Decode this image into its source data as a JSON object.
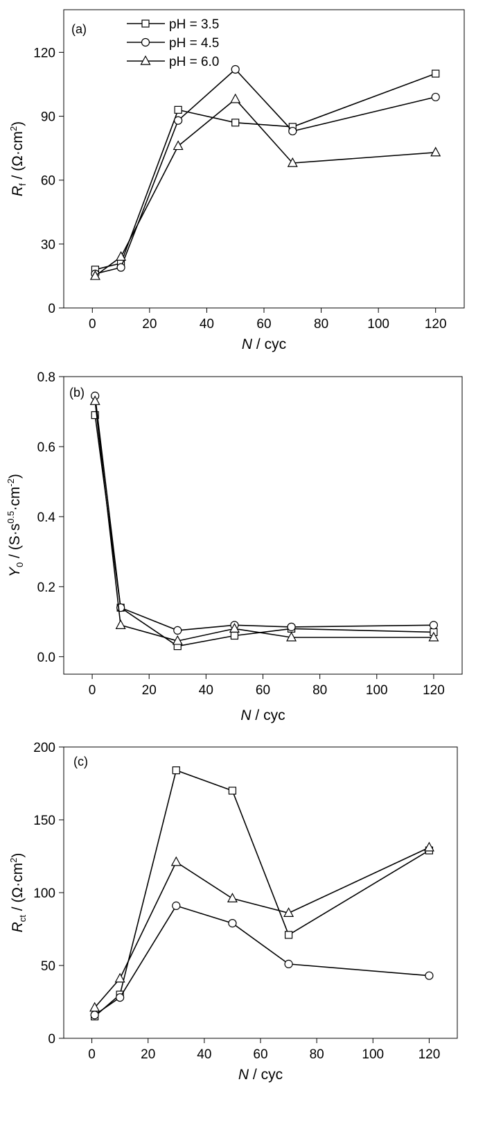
{
  "chart_data": [
    {
      "type": "line",
      "panel_label": "(a)",
      "xlabel": {
        "symbol": "N",
        "unit": " / cyc"
      },
      "ylabel": {
        "symbol": "R",
        "subscript": "f",
        "unit_prefix": " / (Ω·cm",
        "superscript": "2",
        "unit_suffix": ")"
      },
      "xlim": [
        -10,
        130
      ],
      "ylim": [
        0,
        140
      ],
      "xticks": [
        0,
        20,
        40,
        60,
        80,
        100,
        120
      ],
      "yticks": [
        0,
        30,
        60,
        90,
        120
      ],
      "legend": {
        "placement": "top-left"
      },
      "series": [
        {
          "name": "pH = 3.5",
          "marker": "square",
          "x": [
            1,
            10,
            30,
            50,
            70,
            120
          ],
          "y": [
            18,
            21,
            93,
            87,
            85,
            110
          ]
        },
        {
          "name": "pH = 4.5",
          "marker": "circle",
          "x": [
            1,
            10,
            30,
            50,
            70,
            120
          ],
          "y": [
            16,
            19,
            88,
            112,
            83,
            99
          ]
        },
        {
          "name": "pH = 6.0",
          "marker": "triangle",
          "x": [
            1,
            10,
            30,
            50,
            70,
            120
          ],
          "y": [
            15,
            24,
            76,
            98,
            68,
            73
          ]
        }
      ]
    },
    {
      "type": "line",
      "panel_label": "(b)",
      "xlabel": {
        "symbol": "N",
        "unit": "  / cyc"
      },
      "ylabel": {
        "symbol": "Y",
        "subscript": "0",
        "unit_prefix": " / (S·s",
        "superscript": "0.5",
        "unit_mid": "·cm",
        "superscript2": "-2",
        "unit_suffix": ")"
      },
      "xlim": [
        -10,
        130
      ],
      "ylim": [
        -0.05,
        0.8
      ],
      "xticks": [
        0,
        20,
        40,
        60,
        80,
        100,
        120
      ],
      "yticks": [
        0.0,
        0.2,
        0.4,
        0.6,
        0.8
      ],
      "ytick_labels": [
        "0.0",
        "0.2",
        "0.4",
        "0.6",
        "0.8"
      ],
      "series": [
        {
          "name": "pH = 3.5",
          "marker": "square",
          "x": [
            1,
            10,
            30,
            50,
            70,
            120
          ],
          "y": [
            0.69,
            0.14,
            0.03,
            0.06,
            0.08,
            0.07
          ]
        },
        {
          "name": "pH = 4.5",
          "marker": "circle",
          "x": [
            1,
            10,
            30,
            50,
            70,
            120
          ],
          "y": [
            0.745,
            0.14,
            0.075,
            0.09,
            0.085,
            0.09
          ]
        },
        {
          "name": "pH = 6.0",
          "marker": "triangle",
          "x": [
            1,
            10,
            30,
            50,
            70,
            120
          ],
          "y": [
            0.73,
            0.09,
            0.045,
            0.08,
            0.055,
            0.055
          ]
        }
      ]
    },
    {
      "type": "line",
      "panel_label": "(c)",
      "xlabel": {
        "symbol": "N",
        "unit": " / cyc"
      },
      "ylabel": {
        "symbol": "R",
        "subscript": "ct",
        "unit_prefix": " / (Ω·cm",
        "superscript": "2",
        "unit_suffix": ")"
      },
      "xlim": [
        -10,
        130
      ],
      "ylim": [
        0,
        200
      ],
      "xticks": [
        0,
        20,
        40,
        60,
        80,
        100,
        120
      ],
      "yticks": [
        0,
        50,
        100,
        150,
        200
      ],
      "series": [
        {
          "name": "pH = 3.5",
          "marker": "square",
          "x": [
            1,
            10,
            30,
            50,
            70,
            120
          ],
          "y": [
            15,
            30,
            184,
            170,
            71,
            129
          ]
        },
        {
          "name": "pH = 4.5",
          "marker": "circle",
          "x": [
            1,
            10,
            30,
            50,
            70,
            120
          ],
          "y": [
            16,
            28,
            91,
            79,
            51,
            43
          ]
        },
        {
          "name": "pH = 6.0",
          "marker": "triangle",
          "x": [
            1,
            10,
            30,
            50,
            70,
            120
          ],
          "y": [
            21,
            41,
            121,
            96,
            86,
            131
          ]
        }
      ]
    }
  ]
}
